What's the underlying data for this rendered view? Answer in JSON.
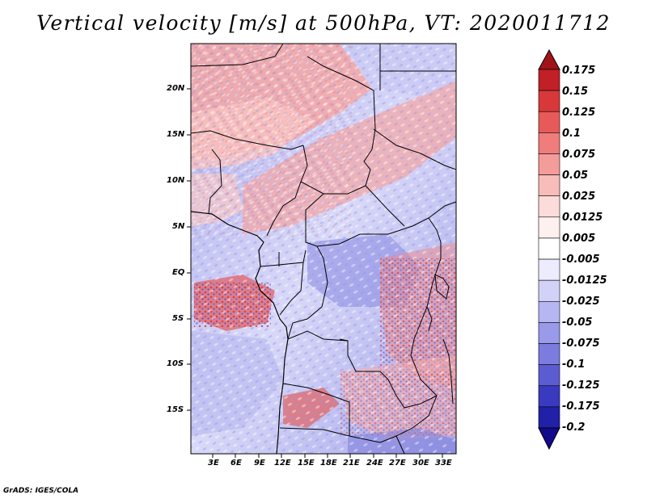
{
  "title": "Vertical velocity [m/s] at 500hPa, VT: 2020011712",
  "lat_labels": [
    "20N",
    "15N",
    "10N",
    "5N",
    "EQ",
    "5S",
    "10S",
    "15S"
  ],
  "lon_labels": [
    "3E",
    "6E",
    "9E",
    "12E",
    "15E",
    "18E",
    "21E",
    "24E",
    "27E",
    "30E",
    "33E"
  ],
  "colorbar": {
    "labels": [
      "0.175",
      "0.15",
      "0.125",
      "0.1",
      "0.075",
      "0.05",
      "0.025",
      "0.0125",
      "0.005",
      "-0.005",
      "-0.0125",
      "-0.025",
      "-0.05",
      "-0.075",
      "-0.1",
      "-0.125",
      "-0.175",
      "-0.2"
    ],
    "colors": [
      "#a01418",
      "#c02026",
      "#d8383a",
      "#e85a5a",
      "#f07c7c",
      "#f49c9a",
      "#f8bcba",
      "#fbdcda",
      "#fff0f0",
      "#ffffff",
      "#ececfc",
      "#d2d2f8",
      "#b6b6f2",
      "#9a9aea",
      "#7c7ce0",
      "#5c5cd2",
      "#3a3ac0",
      "#2020a8",
      "#120a8c"
    ]
  },
  "credit": "GrADS: IGES/COLA"
}
